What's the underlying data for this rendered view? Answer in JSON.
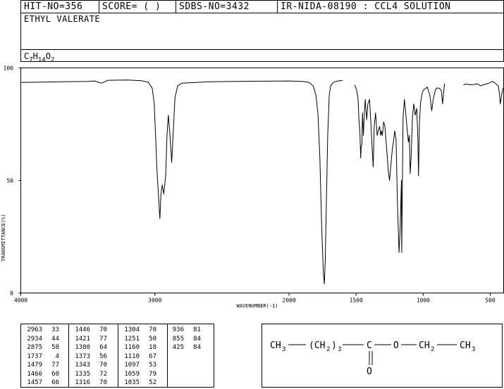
{
  "header": {
    "hit_no": "HIT-NO=356",
    "score": "SCORE=  (  )",
    "sdbs_no": "SDBS-NO=3432",
    "ir_info": "IR-NIDA-08190 : CCL4 SOLUTION"
  },
  "compound": {
    "name": "ETHYL VALERATE",
    "formula_parts": [
      "C",
      "7",
      "H",
      "14",
      "O",
      "2"
    ]
  },
  "chart_data": {
    "type": "line",
    "xlabel": "WAVENUMBER(-1)",
    "ylabel": "TRANSMITTANCE(%)",
    "xlim": [
      4000,
      400
    ],
    "ylim": [
      0,
      100
    ],
    "x_ticks": [
      4000,
      3000,
      2000,
      1500,
      1000,
      500
    ],
    "y_ticks": [
      0,
      50,
      100
    ],
    "grid": false,
    "segments": [
      [
        [
          4000,
          93.5
        ],
        [
          3700,
          93.8
        ],
        [
          3500,
          94.0
        ],
        [
          3450,
          94.2
        ],
        [
          3400,
          93.2
        ],
        [
          3350,
          94.5
        ],
        [
          3200,
          94.6
        ],
        [
          3100,
          94.3
        ],
        [
          3050,
          93.6
        ],
        [
          3020,
          91
        ],
        [
          3005,
          84
        ],
        [
          2995,
          70
        ],
        [
          2985,
          55
        ],
        [
          2975,
          45
        ],
        [
          2963,
          33
        ],
        [
          2955,
          44
        ],
        [
          2945,
          48
        ],
        [
          2934,
          44
        ],
        [
          2920,
          52
        ],
        [
          2910,
          70
        ],
        [
          2900,
          79
        ],
        [
          2890,
          72
        ],
        [
          2875,
          58
        ],
        [
          2865,
          70
        ],
        [
          2850,
          87
        ],
        [
          2830,
          92
        ],
        [
          2800,
          93.2
        ],
        [
          2600,
          93.8
        ],
        [
          2400,
          94.0
        ],
        [
          2200,
          94.1
        ],
        [
          2000,
          94.2
        ],
        [
          1900,
          94.0
        ],
        [
          1850,
          93.5
        ],
        [
          1820,
          92
        ],
        [
          1800,
          88
        ],
        [
          1785,
          80
        ],
        [
          1770,
          60
        ],
        [
          1757,
          30
        ],
        [
          1745,
          10
        ],
        [
          1737,
          4
        ],
        [
          1730,
          14
        ],
        [
          1722,
          40
        ],
        [
          1712,
          70
        ],
        [
          1700,
          88
        ],
        [
          1690,
          92
        ],
        [
          1670,
          93.5
        ],
        [
          1650,
          94
        ],
        [
          1600,
          94.5
        ]
      ],
      [
        [
          1510,
          92.5
        ],
        [
          1495,
          90
        ],
        [
          1485,
          86
        ],
        [
          1479,
          77
        ],
        [
          1472,
          72
        ],
        [
          1466,
          60
        ],
        [
          1462,
          65
        ],
        [
          1457,
          66
        ],
        [
          1452,
          80
        ],
        [
          1446,
          70
        ],
        [
          1440,
          78
        ],
        [
          1432,
          86
        ],
        [
          1421,
          77
        ],
        [
          1412,
          84
        ],
        [
          1400,
          86
        ],
        [
          1390,
          76
        ],
        [
          1380,
          64
        ],
        [
          1373,
          56
        ],
        [
          1365,
          74
        ],
        [
          1355,
          80
        ],
        [
          1343,
          70
        ],
        [
          1335,
          72
        ],
        [
          1325,
          74
        ],
        [
          1316,
          70
        ],
        [
          1310,
          72
        ],
        [
          1304,
          70
        ],
        [
          1295,
          76
        ],
        [
          1285,
          74
        ],
        [
          1270,
          62
        ],
        [
          1260,
          54
        ],
        [
          1251,
          50
        ],
        [
          1242,
          56
        ],
        [
          1230,
          64
        ],
        [
          1220,
          68
        ],
        [
          1212,
          72
        ],
        [
          1202,
          68
        ],
        [
          1192,
          40
        ],
        [
          1180,
          18
        ],
        [
          1172,
          28
        ],
        [
          1162,
          50
        ],
        [
          1160,
          18
        ],
        [
          1150,
          78
        ],
        [
          1140,
          86
        ],
        [
          1130,
          80
        ],
        [
          1120,
          73
        ],
        [
          1110,
          67
        ],
        [
          1103,
          70
        ],
        [
          1097,
          53
        ],
        [
          1090,
          60
        ],
        [
          1080,
          78
        ],
        [
          1070,
          84
        ],
        [
          1059,
          79
        ],
        [
          1048,
          82
        ],
        [
          1040,
          70
        ],
        [
          1035,
          52
        ],
        [
          1028,
          75
        ],
        [
          1020,
          84
        ],
        [
          1010,
          88
        ],
        [
          1000,
          90
        ],
        [
          990,
          90.5
        ],
        [
          970,
          91.5
        ],
        [
          950,
          88
        ],
        [
          936,
          81
        ],
        [
          925,
          86
        ],
        [
          910,
          90
        ],
        [
          900,
          91
        ],
        [
          880,
          91
        ],
        [
          865,
          90
        ],
        [
          855,
          84
        ],
        [
          848,
          89
        ],
        [
          840,
          93
        ]
      ],
      [
        [
          700,
          92.5
        ],
        [
          680,
          92.8
        ],
        [
          650,
          92.5
        ],
        [
          620,
          92.6
        ],
        [
          600,
          93
        ],
        [
          570,
          92
        ],
        [
          550,
          92.5
        ],
        [
          520,
          93
        ],
        [
          500,
          93.5
        ],
        [
          480,
          94
        ],
        [
          460,
          93
        ],
        [
          440,
          92
        ],
        [
          432,
          89
        ],
        [
          425,
          84
        ],
        [
          415,
          88
        ],
        [
          405,
          91
        ]
      ]
    ]
  },
  "peaks": [
    [
      [
        "2963",
        "33"
      ],
      [
        "2934",
        "44"
      ],
      [
        "2875",
        "58"
      ],
      [
        "1737",
        "4"
      ],
      [
        "1479",
        "77"
      ],
      [
        "1466",
        "60"
      ],
      [
        "1457",
        "66"
      ]
    ],
    [
      [
        "1446",
        "70"
      ],
      [
        "1421",
        "77"
      ],
      [
        "1380",
        "64"
      ],
      [
        "1373",
        "56"
      ],
      [
        "1343",
        "70"
      ],
      [
        "1335",
        "72"
      ],
      [
        "1316",
        "70"
      ]
    ],
    [
      [
        "1304",
        "70"
      ],
      [
        "1251",
        "50"
      ],
      [
        "1160",
        "18"
      ],
      [
        "1110",
        "67"
      ],
      [
        "1097",
        "53"
      ],
      [
        "1059",
        "79"
      ],
      [
        "1035",
        "52"
      ]
    ],
    [
      [
        "936",
        "81"
      ],
      [
        "855",
        "84"
      ],
      [
        "425",
        "84"
      ]
    ]
  ],
  "structure": {
    "ch3_left": "CH",
    "sub3a": "3",
    "ch2_group": "(CH",
    "sub2a": "2",
    "close_paren": ")",
    "sub3b": "3",
    "carbon": "C",
    "oxygen": "O",
    "ch2_right": "CH",
    "sub2b": "2",
    "ch3_right": "CH",
    "sub3c": "3",
    "carbonyl_o": "O"
  }
}
